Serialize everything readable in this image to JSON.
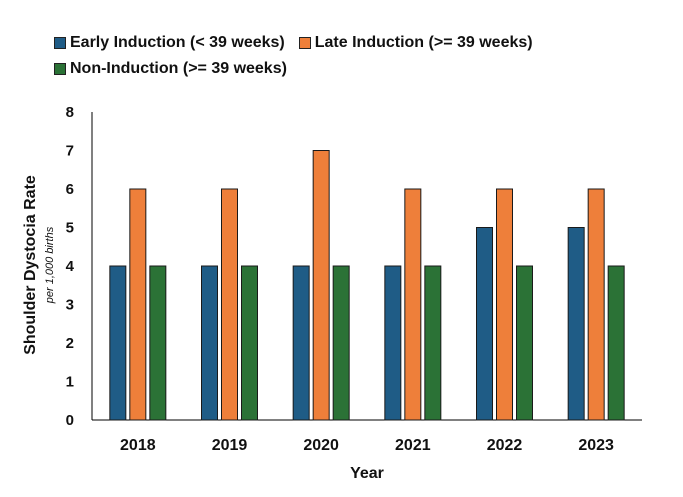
{
  "chart_data": {
    "type": "bar",
    "categories": [
      "2018",
      "2019",
      "2020",
      "2021",
      "2022",
      "2023"
    ],
    "series": [
      {
        "name": "Early Induction (< 39 weeks)",
        "values": [
          4,
          4,
          4,
          4,
          5,
          5
        ],
        "color": "#1f5c86"
      },
      {
        "name": "Late Induction (>= 39 weeks)",
        "values": [
          6,
          6,
          7,
          6,
          6,
          6
        ],
        "color": "#ee7f3a"
      },
      {
        "name": "Non-Induction (>= 39 weeks)",
        "values": [
          4,
          4,
          4,
          4,
          4,
          4
        ],
        "color": "#2b7236"
      }
    ],
    "xlabel": "Year",
    "ylabel": "Shoulder Dystocia Rate",
    "ylabel_sub": "per 1,000 births",
    "ylim": [
      0,
      8
    ],
    "yticks": [
      "0",
      "1",
      "2",
      "3",
      "4",
      "5",
      "6",
      "7",
      "8"
    ],
    "grid": false,
    "legend_position": "top"
  }
}
